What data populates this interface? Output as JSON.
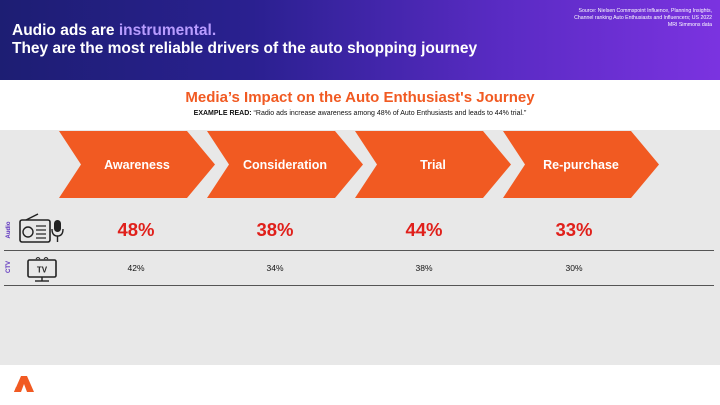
{
  "header": {
    "line1_prefix": "Audio ads are ",
    "line1_accent": "instrumental.",
    "line2": "They are the most reliable drivers of the auto shopping journey",
    "source_lines": [
      "Source: Nielsen Commspoint Influence, Planning Insights,",
      "Channel ranking Auto Enthusiasts and Influencers; US 2022",
      "MRI Simmons data"
    ]
  },
  "chart": {
    "title": "Media’s Impact on the Auto Enthusiast's Journey",
    "example_label": "EXAMPLE READ:",
    "example_text": " “Radio ads increase awareness among 48% of Auto Enthusiasts and leads to 44% trial.”"
  },
  "stages": [
    "Awareness",
    "Consideration",
    "Trial",
    "Re-purchase"
  ],
  "rows": [
    {
      "label": "Audio",
      "icon": "radio-microphone-icon",
      "values": [
        "48%",
        "38%",
        "44%",
        "33%"
      ]
    },
    {
      "label": "CTV",
      "icon": "tv-icon",
      "values": [
        "42%",
        "34%",
        "38%",
        "30%"
      ]
    }
  ],
  "colors": {
    "arrow": "#f15a22",
    "title": "#f15a22",
    "audio_value": "#e0201b",
    "side_label": "#5b2fbf",
    "panel": "#e8e8e8"
  }
}
